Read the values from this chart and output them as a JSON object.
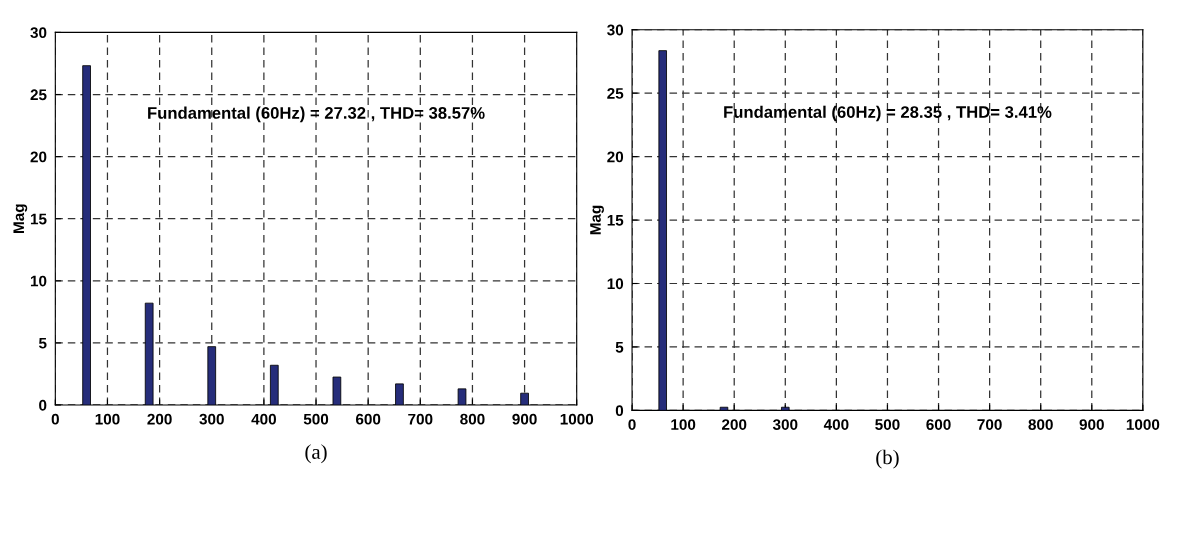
{
  "chart_data": [
    {
      "type": "bar",
      "xlabel": "(a)",
      "ylabel": "Mag",
      "x": [
        60,
        180,
        300,
        420,
        540,
        660,
        780,
        900
      ],
      "values": [
        27.32,
        8.2,
        4.7,
        3.2,
        2.25,
        1.7,
        1.3,
        0.95
      ],
      "color": "#262d7a",
      "xlim": [
        0,
        1000
      ],
      "xticks": [
        0,
        100,
        200,
        300,
        400,
        500,
        600,
        700,
        800,
        900,
        1000
      ],
      "ylim": [
        0,
        30
      ],
      "yticks": [
        0,
        5,
        10,
        15,
        20,
        25,
        30
      ],
      "grid": true,
      "annotations": [
        "Fundamental (60Hz) = 27.32 , THD= 38.57%"
      ]
    },
    {
      "type": "bar",
      "xlabel": "(b)",
      "ylabel": "Mag",
      "x": [
        60,
        180,
        300
      ],
      "values": [
        28.35,
        0.25,
        0.25
      ],
      "color": "#262d7a",
      "xlim": [
        0,
        1000
      ],
      "xticks": [
        0,
        100,
        200,
        300,
        400,
        500,
        600,
        700,
        800,
        900,
        1000
      ],
      "ylim": [
        0,
        30
      ],
      "yticks": [
        0,
        5,
        10,
        15,
        20,
        25,
        30
      ],
      "grid": true,
      "annotations": [
        "Fundamental (60Hz) = 28.35 , THD= 3.41%"
      ]
    }
  ]
}
